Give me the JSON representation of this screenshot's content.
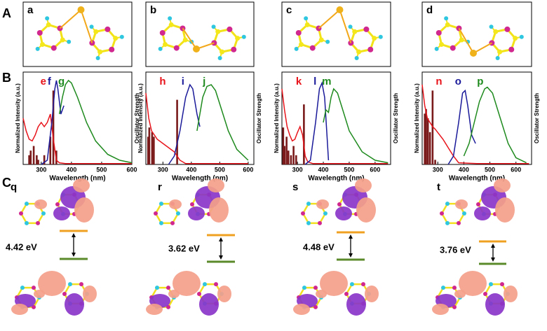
{
  "panel_labels": [
    "A",
    "B",
    "C"
  ],
  "molecules": [
    "a",
    "b",
    "c",
    "d"
  ],
  "chart_data": [
    {
      "type": "line",
      "xlabel": "Wavelength (nm)",
      "ylabel": "Normalized Intensity (a.u.)",
      "y2label": "Oscillator Strength",
      "xlim": [
        240,
        600
      ],
      "xticks": [
        300,
        400,
        500,
        600
      ],
      "ylim": [
        0,
        1.1
      ],
      "y2lim": [
        0,
        1
      ],
      "series": [
        {
          "name": "e",
          "color": "#e8141b",
          "x": [
            240,
            250,
            260,
            270,
            280,
            290,
            300,
            310,
            320,
            330,
            340,
            350,
            360,
            380,
            450,
            600
          ],
          "values": [
            0.55,
            0.4,
            0.3,
            0.28,
            0.35,
            0.45,
            0.5,
            0.45,
            0.5,
            0.6,
            0.3,
            0.05,
            0.02,
            0.01,
            0.01,
            0.01
          ]
        },
        {
          "name": "f",
          "color": "#1a1a9a",
          "x": [
            300,
            320,
            335,
            345,
            350,
            355,
            365,
            375
          ],
          "values": [
            0,
            0.05,
            0.5,
            0.9,
            1.0,
            0.9,
            0.6,
            0.7
          ]
        },
        {
          "name": "g",
          "color": "#1e8a1e",
          "x": [
            360,
            370,
            380,
            390,
            400,
            420,
            450,
            480,
            520,
            560,
            600
          ],
          "values": [
            0.6,
            0.8,
            0.95,
            1.0,
            0.97,
            0.8,
            0.5,
            0.28,
            0.12,
            0.05,
            0.02
          ]
        }
      ],
      "bars": {
        "color": "#7a1a1a",
        "axis": "y2",
        "x": [
          260,
          265,
          275,
          285,
          290,
          310,
          330,
          340,
          350
        ],
        "values": [
          0.1,
          0.15,
          0.2,
          0.1,
          0.05,
          0.1,
          0.3,
          0.8,
          0.15
        ]
      }
    },
    {
      "type": "line",
      "xlabel": "Wavelength (nm)",
      "ylabel": "Normalized Intensity (a.u.)",
      "y2label": "Oscillator Strength",
      "xlim": [
        240,
        620
      ],
      "xticks": [
        300,
        400,
        500,
        600
      ],
      "ylim": [
        0,
        1.1
      ],
      "y2lim": [
        0,
        1
      ],
      "series": [
        {
          "name": "h",
          "color": "#e8141b",
          "x": [
            240,
            250,
            260,
            270,
            280,
            300,
            320,
            340,
            360,
            380,
            450,
            600
          ],
          "values": [
            0.85,
            0.55,
            0.4,
            0.35,
            0.3,
            0.25,
            0.2,
            0.15,
            0.05,
            0.01,
            0.01,
            0.01
          ]
        },
        {
          "name": "i",
          "color": "#1a1a9a",
          "x": [
            320,
            340,
            360,
            380,
            395,
            405,
            420,
            430
          ],
          "values": [
            0,
            0.1,
            0.4,
            0.8,
            0.95,
            0.9,
            0.6,
            0.45
          ]
        },
        {
          "name": "j",
          "color": "#1e8a1e",
          "x": [
            420,
            430,
            440,
            455,
            470,
            485,
            500,
            530,
            560,
            600
          ],
          "values": [
            0.4,
            0.6,
            0.8,
            0.93,
            0.95,
            0.88,
            0.72,
            0.4,
            0.18,
            0.05
          ]
        }
      ],
      "bars": {
        "color": "#7a1a1a",
        "axis": "y2",
        "x": [
          248,
          252,
          262,
          268,
          350
        ],
        "values": [
          0.3,
          0.4,
          0.35,
          0.3,
          0.7
        ]
      }
    },
    {
      "type": "line",
      "xlabel": "Wavelength (nm)",
      "ylabel": "Normalized Intensity (a.u.)",
      "y2label": "Oscillator Strength",
      "xlim": [
        240,
        660
      ],
      "xticks": [
        300,
        400,
        500,
        600
      ],
      "ylim": [
        0,
        1.1
      ],
      "y2lim": [
        0,
        1
      ],
      "series": [
        {
          "name": "k",
          "color": "#e8141b",
          "x": [
            240,
            250,
            260,
            270,
            280,
            290,
            300,
            310,
            320,
            330,
            340,
            360,
            400,
            650
          ],
          "values": [
            0.9,
            0.65,
            0.45,
            0.35,
            0.28,
            0.3,
            0.38,
            0.45,
            0.35,
            0.1,
            0.03,
            0.01,
            0.01,
            0.01
          ]
        },
        {
          "name": "l",
          "color": "#1a1a9a",
          "x": [
            330,
            350,
            370,
            385,
            395,
            405,
            415,
            420
          ],
          "values": [
            0,
            0.05,
            0.5,
            0.9,
            0.97,
            0.8,
            0.3,
            0.05
          ]
        },
        {
          "name": "m",
          "color": "#1e8a1e",
          "x": [
            400,
            410,
            420,
            430,
            440,
            455,
            470,
            500,
            550,
            600,
            650
          ],
          "values": [
            0.5,
            0.65,
            0.62,
            0.8,
            0.9,
            0.85,
            0.7,
            0.4,
            0.15,
            0.05,
            0.02
          ]
        }
      ],
      "bars": {
        "color": "#7a1a1a",
        "axis": "y2",
        "x": [
          245,
          250,
          258,
          265,
          275,
          285,
          295,
          325
        ],
        "values": [
          0.4,
          0.2,
          0.3,
          0.15,
          0.1,
          0.2,
          0.1,
          0.65
        ]
      }
    },
    {
      "type": "line",
      "xlabel": "Wavelength (nm)",
      "ylabel": "Normalized Intensity (a.u.)",
      "y2label": "Oscillator Strength",
      "xlim": [
        240,
        660
      ],
      "xticks": [
        300,
        400,
        500,
        600
      ],
      "ylim": [
        0,
        1.1
      ],
      "y2lim": [
        0,
        1
      ],
      "series": [
        {
          "name": "n",
          "color": "#e8141b",
          "x": [
            240,
            250,
            260,
            270,
            280,
            290,
            300,
            320,
            340,
            360,
            380,
            450,
            650
          ],
          "values": [
            0.95,
            0.7,
            0.55,
            0.5,
            0.45,
            0.42,
            0.38,
            0.3,
            0.2,
            0.1,
            0.02,
            0.01,
            0.01
          ]
        },
        {
          "name": "o",
          "color": "#1a1a9a",
          "x": [
            340,
            360,
            380,
            395,
            405,
            415,
            430,
            445
          ],
          "values": [
            0,
            0.1,
            0.5,
            0.85,
            0.88,
            0.7,
            0.35,
            0.25
          ]
        },
        {
          "name": "p",
          "color": "#1e8a1e",
          "x": [
            400,
            420,
            440,
            460,
            480,
            490,
            510,
            540,
            570,
            600,
            640
          ],
          "values": [
            0.1,
            0.25,
            0.5,
            0.75,
            0.9,
            0.92,
            0.85,
            0.55,
            0.25,
            0.08,
            0.02
          ]
        }
      ],
      "bars": {
        "color": "#7a1a1a",
        "axis": "y2",
        "x": [
          250,
          255,
          262,
          270,
          280,
          290
        ],
        "values": [
          0.55,
          0.6,
          0.5,
          0.35,
          0.8,
          0.05
        ]
      }
    }
  ],
  "orbitals": [
    {
      "label": "q",
      "gap": "4.42 eV"
    },
    {
      "label": "r",
      "gap": "3.62 eV"
    },
    {
      "label": "s",
      "gap": "4.48 eV"
    },
    {
      "label": "t",
      "gap": "3.76 eV"
    }
  ]
}
